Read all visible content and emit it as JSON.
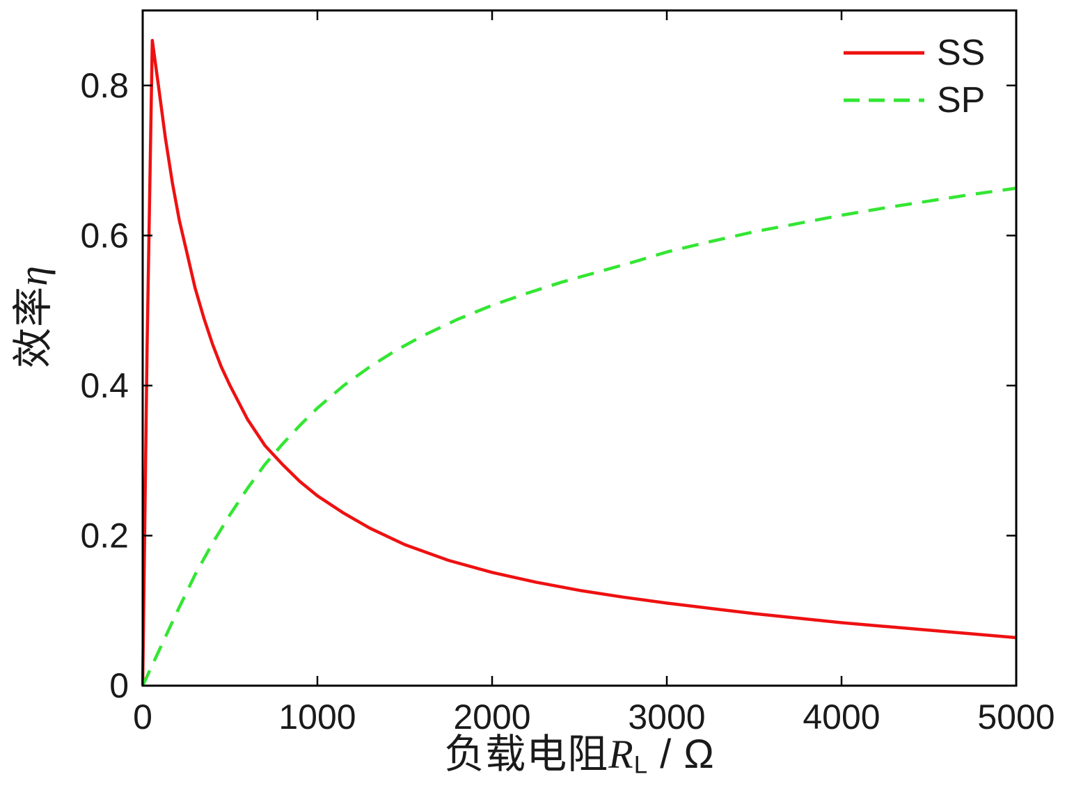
{
  "chart_data": {
    "type": "line",
    "title": "",
    "xlabel": "负载电阻R_L / Ω",
    "ylabel": "效率η",
    "xlabel_parts": {
      "prefix": "负载电阻",
      "variable": "R",
      "subscript": "L",
      "suffix": " / Ω"
    },
    "ylabel_parts": {
      "prefix": "效率",
      "variable": "η"
    },
    "xlim": [
      0,
      5000
    ],
    "ylim": [
      0,
      0.9
    ],
    "xticks": [
      0,
      1000,
      2000,
      3000,
      4000,
      5000
    ],
    "xtick_labels": [
      "0",
      "1000",
      "2000",
      "3000",
      "4000",
      "5000"
    ],
    "yticks": [
      0,
      0.2,
      0.4,
      0.6,
      0.8
    ],
    "ytick_labels": [
      "0",
      "0.2",
      "0.4",
      "0.6",
      "0.8"
    ],
    "grid": false,
    "legend_position": "top-right-inside",
    "axis_color": "#000000",
    "text_color": "#1a1a1a",
    "background": "#ffffff",
    "series": [
      {
        "name": "SS",
        "color": "#ee1111",
        "style": "solid",
        "x": [
          0,
          25,
          55,
          90,
          130,
          170,
          210,
          250,
          300,
          350,
          400,
          450,
          500,
          600,
          700,
          800,
          900,
          1000,
          1150,
          1300,
          1500,
          1750,
          2000,
          2250,
          2500,
          2750,
          3000,
          3250,
          3500,
          3750,
          4000,
          4250,
          4500,
          4750,
          5000
        ],
        "y": [
          0,
          0.45,
          0.86,
          0.8,
          0.73,
          0.67,
          0.62,
          0.58,
          0.53,
          0.49,
          0.455,
          0.425,
          0.4,
          0.355,
          0.32,
          0.295,
          0.272,
          0.253,
          0.23,
          0.21,
          0.188,
          0.167,
          0.151,
          0.138,
          0.127,
          0.118,
          0.11,
          0.103,
          0.096,
          0.09,
          0.084,
          0.079,
          0.074,
          0.069,
          0.064
        ]
      },
      {
        "name": "SP",
        "color": "#33e633",
        "style": "dashed",
        "x": [
          0,
          100,
          200,
          300,
          400,
          500,
          600,
          700,
          800,
          900,
          1000,
          1150,
          1300,
          1450,
          1600,
          1800,
          2000,
          2200,
          2400,
          2600,
          2800,
          3000,
          3250,
          3500,
          3750,
          4000,
          4250,
          4500,
          4750,
          5000
        ],
        "y": [
          0,
          0.05,
          0.1,
          0.148,
          0.19,
          0.228,
          0.263,
          0.295,
          0.322,
          0.347,
          0.37,
          0.4,
          0.425,
          0.447,
          0.466,
          0.488,
          0.507,
          0.523,
          0.538,
          0.551,
          0.564,
          0.578,
          0.592,
          0.605,
          0.616,
          0.627,
          0.637,
          0.646,
          0.655,
          0.663
        ]
      }
    ]
  }
}
